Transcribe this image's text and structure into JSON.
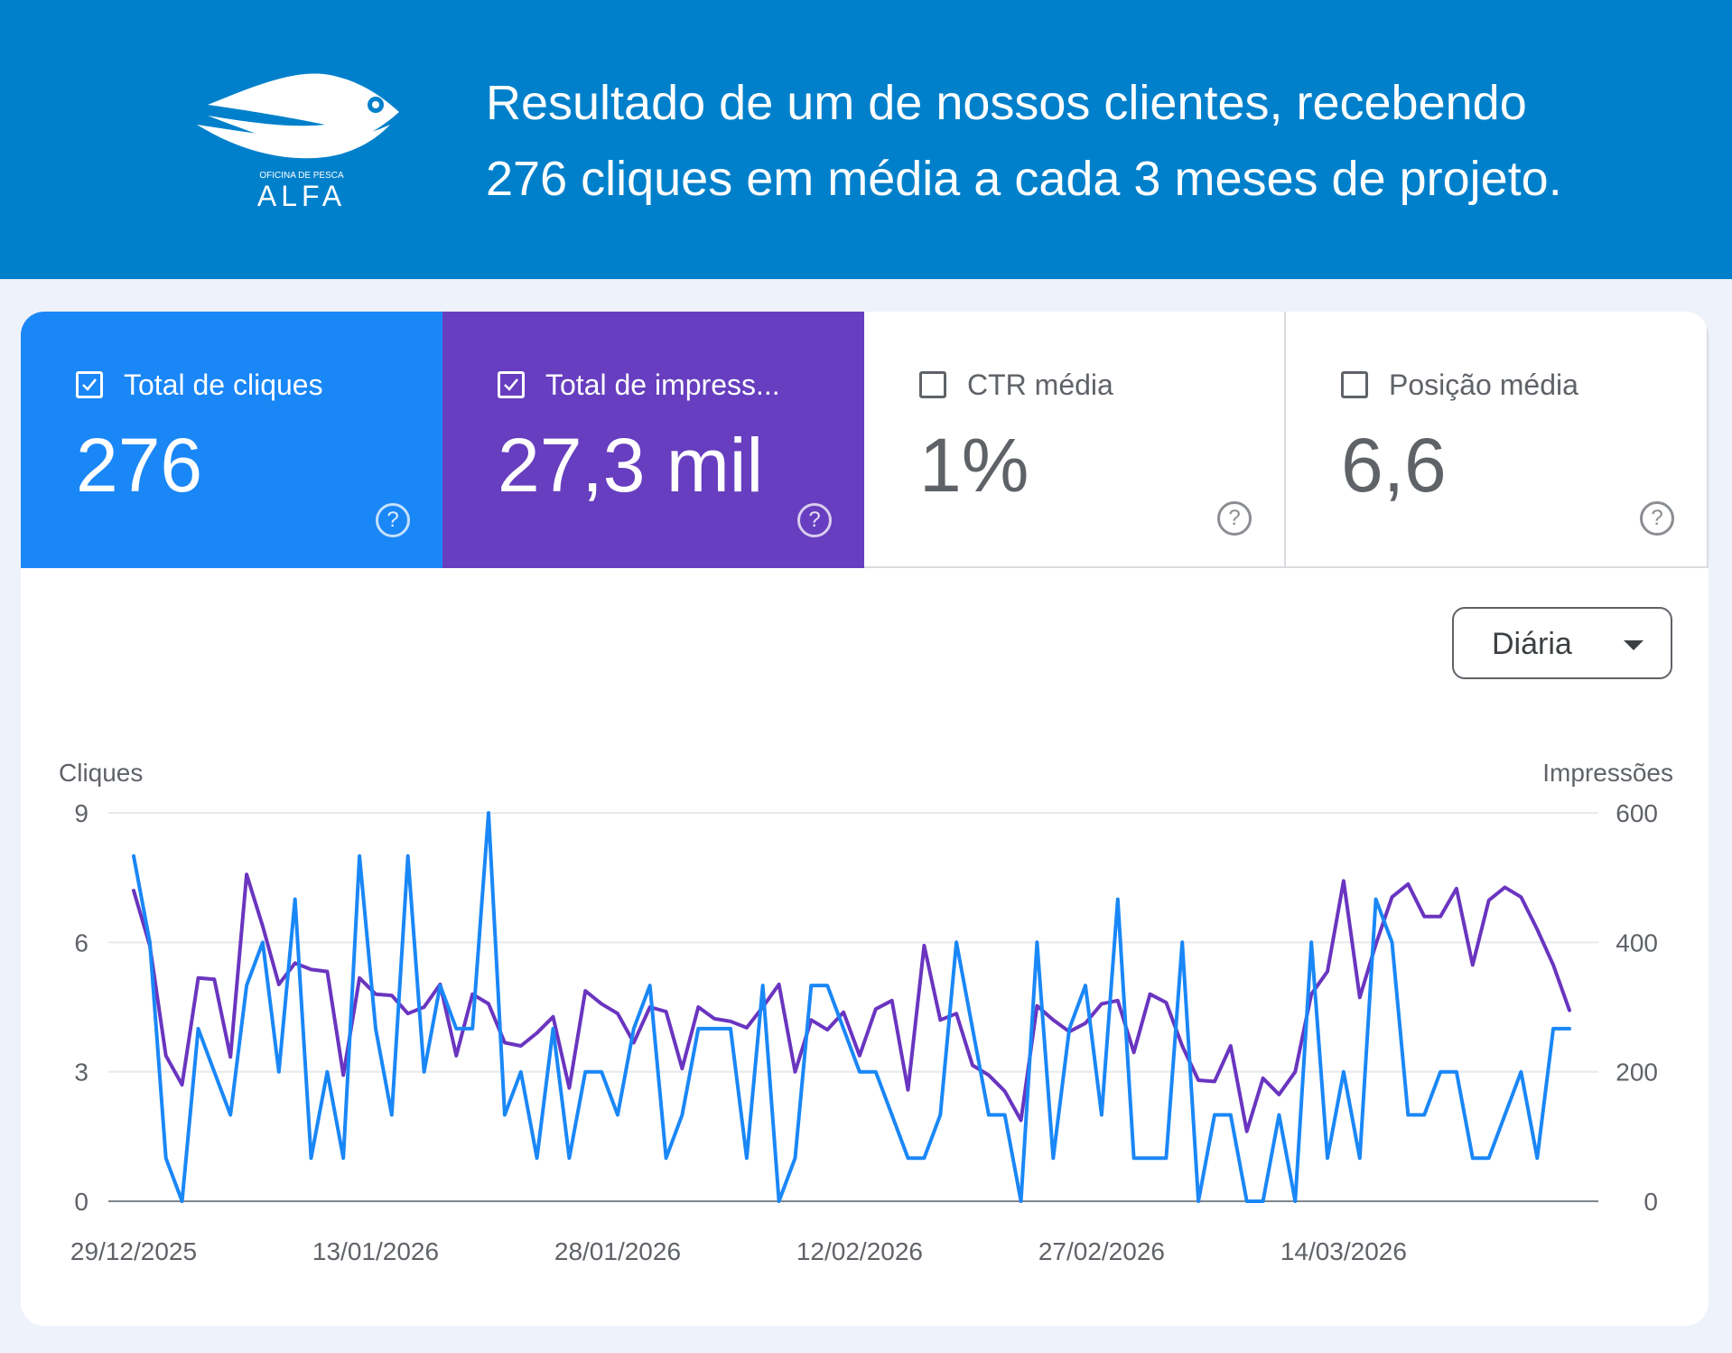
{
  "banner": {
    "brand_small": "OFICINA DE PESCA",
    "brand_big": "ALFA",
    "headline_line1": "Resultado de um de nossos clientes, recebendo",
    "headline_line2": "276 cliques em média a cada 3 meses de projeto.",
    "background_color": "#0080cb"
  },
  "metrics": [
    {
      "label": "Total de cliques",
      "value": "276",
      "checked": true,
      "color": "#1a87f7"
    },
    {
      "label": "Total de impress...",
      "value": "27,3 mil",
      "checked": true,
      "color": "#673ebf"
    },
    {
      "label": "CTR média",
      "value": "1%",
      "checked": false
    },
    {
      "label": "Posição média",
      "value": "6,6",
      "checked": false
    }
  ],
  "granularity": {
    "selected": "Diária"
  },
  "chart_data": {
    "type": "line",
    "left_axis": {
      "label": "Cliques",
      "ticks": [
        "0",
        "3",
        "6",
        "9"
      ],
      "range": [
        0,
        9
      ]
    },
    "right_axis": {
      "label": "Impressões",
      "ticks": [
        "0",
        "200",
        "400",
        "600"
      ],
      "range": [
        0,
        600
      ]
    },
    "x_tick_labels": [
      "29/12/2025",
      "13/01/2026",
      "28/01/2026",
      "12/02/2026",
      "27/02/2026",
      "14/03/2026"
    ],
    "x_range": [
      "29/12/2025",
      "01/04/2026"
    ],
    "grid": true,
    "series": [
      {
        "name": "Cliques",
        "axis": "left",
        "color": "#1a87f7",
        "values": [
          8,
          6,
          1,
          0,
          4,
          3,
          2,
          5,
          6,
          3,
          7,
          1,
          3,
          1,
          8,
          4,
          2,
          8,
          3,
          5,
          4,
          4,
          9,
          2,
          3,
          1,
          4,
          1,
          3,
          3,
          2,
          4,
          5,
          1,
          2,
          4,
          4,
          4,
          1,
          5,
          0,
          1,
          5,
          5,
          4,
          3,
          3,
          2,
          1,
          1,
          2,
          6,
          4,
          2,
          2,
          0,
          6,
          1,
          4,
          5,
          2,
          7,
          1,
          1,
          1,
          6,
          0,
          2,
          2,
          0,
          0,
          2,
          0,
          6,
          1,
          3,
          1,
          7,
          6,
          2,
          2,
          3,
          3,
          1,
          1,
          2,
          3,
          1,
          4,
          4
        ]
      },
      {
        "name": "Impressões",
        "axis": "right",
        "color": "#6a35c0",
        "values": [
          480,
          395,
          225,
          180,
          345,
          343,
          223,
          505,
          425,
          335,
          368,
          358,
          355,
          195,
          345,
          320,
          318,
          290,
          300,
          335,
          225,
          320,
          305,
          245,
          240,
          260,
          285,
          175,
          325,
          305,
          290,
          245,
          300,
          293,
          205,
          300,
          282,
          278,
          268,
          300,
          335,
          200,
          280,
          265,
          292,
          225,
          297,
          310,
          172,
          395,
          280,
          290,
          210,
          195,
          170,
          125,
          302,
          280,
          262,
          275,
          305,
          310,
          230,
          320,
          307,
          240,
          187,
          185,
          240,
          108,
          190,
          165,
          200,
          320,
          355,
          495,
          315,
          397,
          470,
          490,
          440,
          440,
          483,
          365,
          465,
          485,
          470,
          420,
          365,
          295
        ]
      }
    ]
  }
}
